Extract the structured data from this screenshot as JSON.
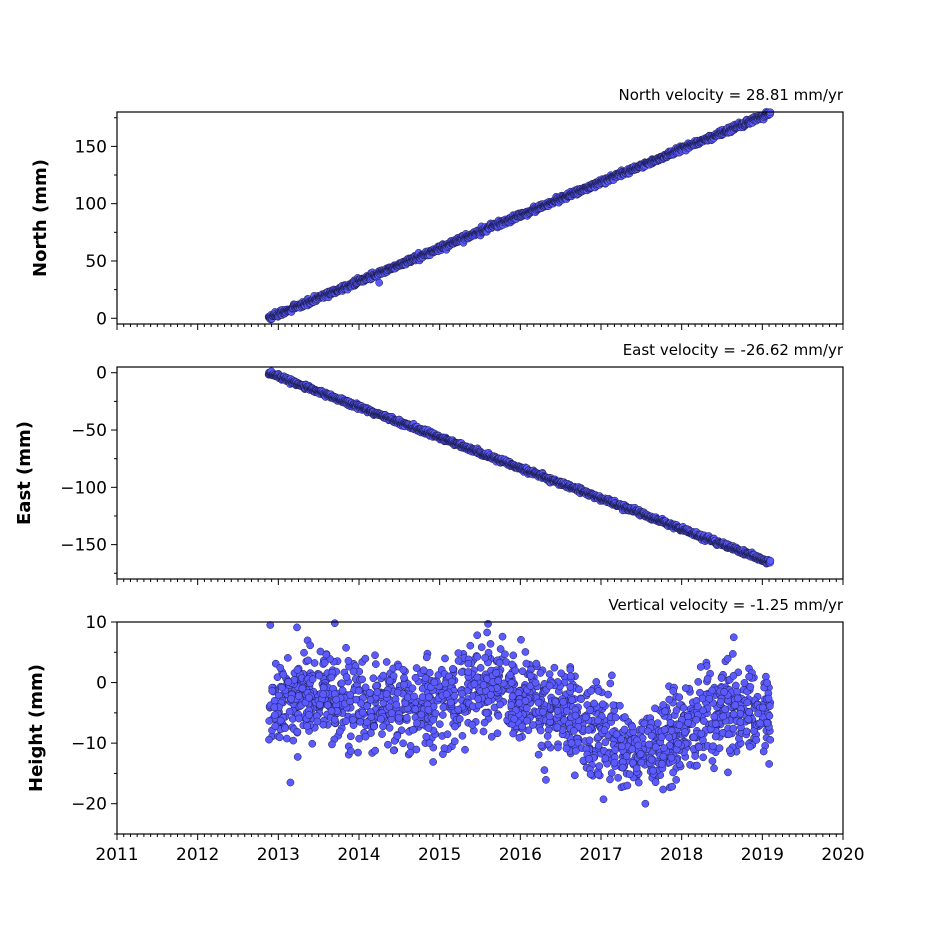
{
  "chart_data": [
    {
      "type": "scatter",
      "title": "North velocity = 28.81 mm/yr",
      "ylabel": "North (mm)",
      "xlabel": "",
      "xlim": [
        2011,
        2020
      ],
      "ylim": [
        -5,
        180
      ],
      "yticks": [
        0,
        50,
        100,
        150
      ],
      "ytick_labels": [
        "0",
        "50",
        "100",
        "150"
      ],
      "marker_color": "#5a5aff",
      "grid": false,
      "trend": {
        "start_year": 2012.88,
        "end_year": 2019.1,
        "start_value": 0,
        "rate_per_year": 28.81,
        "scatter_sd": 1.2
      },
      "outliers": [
        {
          "x": 2014.25,
          "y": 31
        }
      ]
    },
    {
      "type": "scatter",
      "title": "East velocity = -26.62 mm/yr",
      "ylabel": "East (mm)",
      "xlabel": "",
      "xlim": [
        2011,
        2020
      ],
      "ylim": [
        -180,
        5
      ],
      "yticks": [
        0,
        -50,
        -100,
        -150
      ],
      "ytick_labels": [
        "0",
        "−50",
        "−100",
        "−150"
      ],
      "marker_color": "#5a5aff",
      "grid": false,
      "trend": {
        "start_year": 2012.88,
        "end_year": 2019.1,
        "start_value": 0,
        "rate_per_year": -26.62,
        "scatter_sd": 1.0
      },
      "outliers": []
    },
    {
      "type": "scatter",
      "title": "Vertical velocity = -1.25 mm/yr",
      "ylabel": "Height (mm)",
      "xlabel": "",
      "xlim": [
        2011,
        2020
      ],
      "ylim": [
        -25,
        10
      ],
      "yticks": [
        10,
        0,
        -10,
        -20
      ],
      "ytick_labels": [
        "10",
        "0",
        "−10",
        "−20"
      ],
      "marker_color": "#5a5aff",
      "grid": false,
      "noise": {
        "start_year": 2012.88,
        "end_year": 2019.1,
        "scatter_sd": 3.5,
        "mean_profile": [
          {
            "x": 2012.9,
            "y": -4
          },
          {
            "x": 2013.5,
            "y": -2
          },
          {
            "x": 2014.0,
            "y": -3
          },
          {
            "x": 2014.6,
            "y": -4
          },
          {
            "x": 2015.0,
            "y": -4
          },
          {
            "x": 2015.6,
            "y": 0
          },
          {
            "x": 2016.0,
            "y": -3
          },
          {
            "x": 2016.5,
            "y": -5
          },
          {
            "x": 2017.0,
            "y": -9
          },
          {
            "x": 2017.5,
            "y": -12
          },
          {
            "x": 2018.0,
            "y": -8
          },
          {
            "x": 2018.5,
            "y": -4
          },
          {
            "x": 2019.1,
            "y": -5
          }
        ]
      },
      "outliers": [
        {
          "x": 2012.9,
          "y": 9.5
        },
        {
          "x": 2013.7,
          "y": 9.8
        },
        {
          "x": 2015.6,
          "y": 9.7
        },
        {
          "x": 2013.15,
          "y": -16.5
        },
        {
          "x": 2017.55,
          "y": -20
        }
      ]
    }
  ],
  "shared_x_axis": {
    "ticks": [
      2011,
      2012,
      2013,
      2014,
      2015,
      2016,
      2017,
      2018,
      2019,
      2020
    ],
    "tick_labels": [
      "2011",
      "2012",
      "2013",
      "2014",
      "2015",
      "2016",
      "2017",
      "2018",
      "2019",
      "2020"
    ],
    "minor_ticks_per_year": 12
  }
}
